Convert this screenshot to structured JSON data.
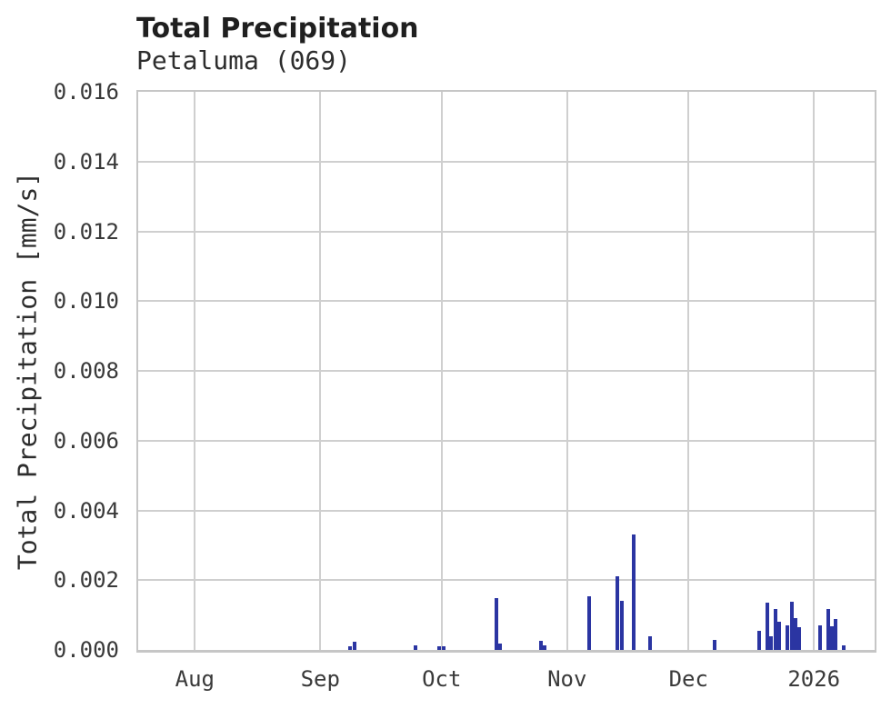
{
  "header": {
    "title": "Total Precipitation",
    "subtitle": "Petaluma (069)"
  },
  "colors": {
    "bar": "#2b35a2",
    "grid": "#cfcfcf",
    "spine": "#c6c6c6",
    "title_text": "#1f1f1f",
    "tick_text": "#3a3a3a"
  },
  "chart_data": {
    "type": "bar",
    "title": "Total Precipitation",
    "subtitle": "Petaluma (069)",
    "station": "Petaluma (069)",
    "xlabel": "",
    "ylabel": "Total Precipitation [mm/s]",
    "ylim": [
      0,
      0.016
    ],
    "grid": true,
    "legend": false,
    "x_domain": [
      "2025-07-18",
      "2026-01-16"
    ],
    "y_ticks": [
      {
        "value": 0.0,
        "label": "0.000"
      },
      {
        "value": 0.002,
        "label": "0.002"
      },
      {
        "value": 0.004,
        "label": "0.004"
      },
      {
        "value": 0.006,
        "label": "0.006"
      },
      {
        "value": 0.008,
        "label": "0.008"
      },
      {
        "value": 0.01,
        "label": "0.010"
      },
      {
        "value": 0.012,
        "label": "0.012"
      },
      {
        "value": 0.014,
        "label": "0.014"
      },
      {
        "value": 0.016,
        "label": "0.016"
      }
    ],
    "x_ticks": [
      {
        "date": "2025-08-01",
        "label": "Aug"
      },
      {
        "date": "2025-09-01",
        "label": "Sep"
      },
      {
        "date": "2025-10-01",
        "label": "Oct"
      },
      {
        "date": "2025-11-01",
        "label": "Nov"
      },
      {
        "date": "2025-12-01",
        "label": "Dec"
      },
      {
        "date": "2026-01-01",
        "label": "2026"
      }
    ],
    "series": [
      {
        "name": "Total Precipitation",
        "unit": "mm/s",
        "color": "#2b35a2",
        "points": [
          {
            "date": "2025-09-08",
            "value": 0.0001
          },
          {
            "date": "2025-09-09",
            "value": 0.00023
          },
          {
            "date": "2025-09-24",
            "value": 0.00012
          },
          {
            "date": "2025-09-30",
            "value": 0.0001
          },
          {
            "date": "2025-10-01",
            "value": 0.0001
          },
          {
            "date": "2025-10-14",
            "value": 0.00148
          },
          {
            "date": "2025-10-15",
            "value": 0.00018
          },
          {
            "date": "2025-10-25",
            "value": 0.00026
          },
          {
            "date": "2025-10-26",
            "value": 0.00012
          },
          {
            "date": "2025-11-06",
            "value": 0.00155
          },
          {
            "date": "2025-11-13",
            "value": 0.00212
          },
          {
            "date": "2025-11-14",
            "value": 0.0014
          },
          {
            "date": "2025-11-17",
            "value": 0.00331
          },
          {
            "date": "2025-11-21",
            "value": 0.0004
          },
          {
            "date": "2025-12-07",
            "value": 0.00028
          },
          {
            "date": "2025-12-18",
            "value": 0.00055
          },
          {
            "date": "2025-12-20",
            "value": 0.00135
          },
          {
            "date": "2025-12-21",
            "value": 0.0004
          },
          {
            "date": "2025-12-22",
            "value": 0.00117
          },
          {
            "date": "2025-12-23",
            "value": 0.0008
          },
          {
            "date": "2025-12-25",
            "value": 0.0007
          },
          {
            "date": "2025-12-26",
            "value": 0.00138
          },
          {
            "date": "2025-12-27",
            "value": 0.0009
          },
          {
            "date": "2025-12-28",
            "value": 0.00065
          },
          {
            "date": "2026-01-02",
            "value": 0.0007
          },
          {
            "date": "2026-01-04",
            "value": 0.00117
          },
          {
            "date": "2026-01-05",
            "value": 0.00068
          },
          {
            "date": "2026-01-06",
            "value": 0.00088
          },
          {
            "date": "2026-01-08",
            "value": 0.00012
          }
        ]
      }
    ]
  }
}
